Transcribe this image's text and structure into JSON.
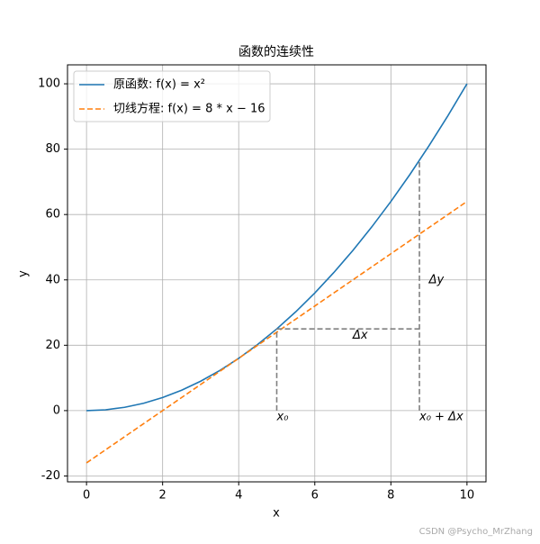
{
  "chart_data": {
    "type": "line",
    "title": "函数的连续性",
    "xlabel": "x",
    "ylabel": "y",
    "x": [
      0,
      0.5,
      1,
      1.5,
      2,
      2.5,
      3,
      3.5,
      4,
      4.5,
      5,
      5.5,
      6,
      6.5,
      7,
      7.5,
      8,
      8.5,
      9,
      9.5,
      10
    ],
    "series": [
      {
        "name": "原函数: f(x) = x²",
        "color": "#1f77b4",
        "dash": false,
        "values": [
          0,
          0.25,
          1,
          2.25,
          4,
          6.25,
          9,
          12.25,
          16,
          20.25,
          25,
          30.25,
          36,
          42.25,
          49,
          56.25,
          64,
          72.25,
          81,
          90.25,
          100
        ]
      },
      {
        "name": "切线方程: f(x) = 8 * x − 16",
        "color": "#ff7f0e",
        "dash": true,
        "values": [
          -16,
          -12,
          -8,
          -4,
          0,
          4,
          8,
          12,
          16,
          20,
          24,
          28,
          32,
          36,
          40,
          44,
          48,
          52,
          56,
          60,
          64
        ]
      }
    ],
    "guides": [
      {
        "x": [
          5,
          8.75
        ],
        "y": [
          25,
          25
        ]
      },
      {
        "x": [
          5,
          5
        ],
        "y": [
          0,
          25
        ]
      },
      {
        "x": [
          8.75,
          8.75
        ],
        "y": [
          0,
          76.5625
        ]
      }
    ],
    "annotations": [
      {
        "text": "Δx",
        "x": 7,
        "y": 23
      },
      {
        "text": "Δy",
        "x": 9,
        "y": 40
      },
      {
        "text": "x₀",
        "x": 5,
        "y": -2
      },
      {
        "text": "x₀ + Δx",
        "x": 8.75,
        "y": -2
      }
    ],
    "guide_color": "#808080",
    "xlim": [
      -0.5,
      10.5
    ],
    "ylim": [
      -21.8,
      105.8
    ],
    "xticks": [
      0,
      2,
      4,
      6,
      8,
      10
    ],
    "yticks": [
      -20,
      0,
      20,
      40,
      60,
      80,
      100
    ],
    "grid": true,
    "legend": "upper left"
  },
  "watermark": "CSDN @Psycho_MrZhang"
}
